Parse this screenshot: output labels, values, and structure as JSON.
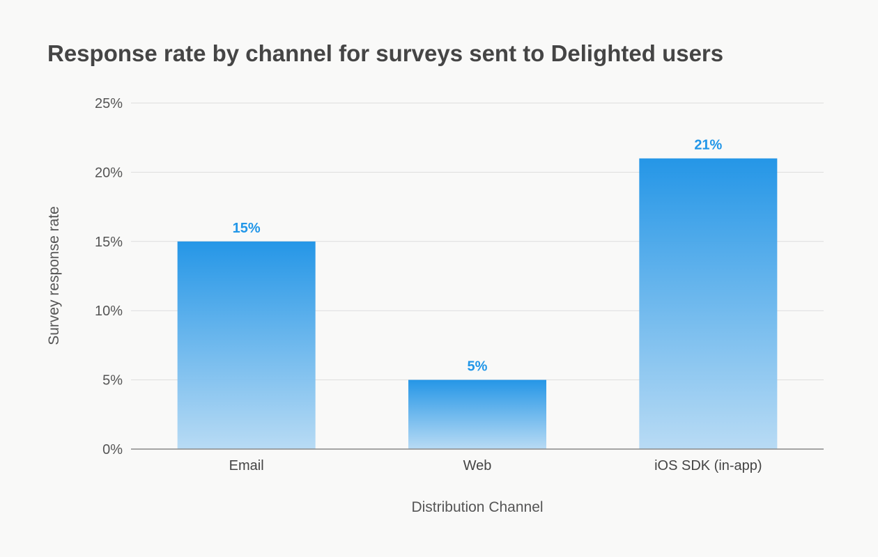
{
  "chart_data": {
    "type": "bar",
    "title": "Response rate by channel for surveys sent to Delighted users",
    "categories": [
      "Email",
      "Web",
      "iOS SDK (in-app)"
    ],
    "values": [
      15,
      5,
      21
    ],
    "data_labels": [
      "15%",
      "5%",
      "21%"
    ],
    "xlabel": "Distribution Channel",
    "ylabel": "Survey response rate",
    "ylim": [
      0,
      25
    ],
    "yticks": [
      0,
      5,
      10,
      15,
      20,
      25
    ],
    "ytick_labels": [
      "0%",
      "5%",
      "10%",
      "15%",
      "20%",
      "25%"
    ],
    "grid": true,
    "colors": {
      "bar_top": "#1e93e6",
      "bar_bottom": "#b6daf4",
      "label": "#2196e8"
    }
  }
}
